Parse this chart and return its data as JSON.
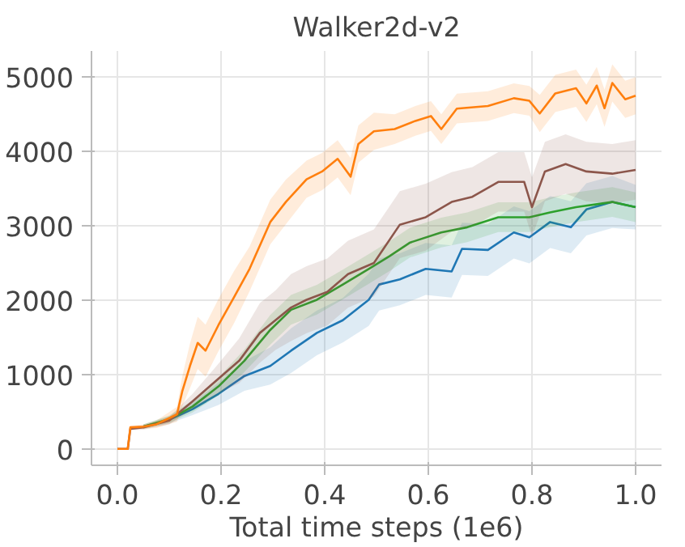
{
  "chart_data": {
    "type": "line",
    "title": "Walker2d-v2",
    "xlabel": "Total time steps (1e6)",
    "xlim": [
      -0.05,
      1.05
    ],
    "ylim": [
      -220,
      5350
    ],
    "xticks": [
      {
        "value": 0,
        "label": "0.0"
      },
      0.2,
      0.4,
      0.6,
      0.8,
      {
        "value": 1,
        "label": "1.0"
      }
    ],
    "yticks": [
      0,
      1000,
      2000,
      3000,
      4000,
      5000
    ],
    "grid": true,
    "marker": "none",
    "line_style": "solid",
    "series": [
      {
        "color": "#1f77b4",
        "x": [
          0.05,
          0.1,
          0.145,
          0.195,
          0.245,
          0.295,
          0.335,
          0.385,
          0.435,
          0.485,
          0.505,
          0.545,
          0.595,
          0.645,
          0.665,
          0.715,
          0.765,
          0.795,
          0.835,
          0.875,
          0.905,
          0.955,
          1.0
        ],
        "values": [
          300,
          390,
          535,
          740,
          980,
          1115,
          1320,
          1560,
          1730,
          2005,
          2210,
          2280,
          2420,
          2385,
          2690,
          2675,
          2910,
          2845,
          3050,
          2980,
          3220,
          3320,
          3250
        ],
        "lower": [
          270,
          340,
          455,
          590,
          780,
          865,
          1020,
          1260,
          1430,
          1655,
          1860,
          1930,
          2070,
          2035,
          2340,
          2325,
          2560,
          2495,
          2700,
          2630,
          2870,
          2970,
          2950
        ],
        "upper": [
          330,
          440,
          615,
          890,
          1180,
          1365,
          1620,
          1860,
          2030,
          2355,
          2560,
          2630,
          2770,
          2735,
          3040,
          3025,
          3260,
          3195,
          3400,
          3330,
          3570,
          3670,
          3550
        ]
      },
      {
        "color": "#2ca02c",
        "x": [
          0.05,
          0.1,
          0.145,
          0.195,
          0.245,
          0.295,
          0.335,
          0.385,
          0.435,
          0.485,
          0.525,
          0.565,
          0.625,
          0.675,
          0.735,
          0.795,
          0.835,
          0.885,
          0.955,
          1.0
        ],
        "values": [
          300,
          400,
          570,
          840,
          1185,
          1600,
          1870,
          2005,
          2210,
          2420,
          2590,
          2775,
          2910,
          2980,
          3115,
          3115,
          3180,
          3250,
          3320,
          3250
        ],
        "lower": [
          270,
          350,
          490,
          720,
          1035,
          1400,
          1670,
          1805,
          2010,
          2220,
          2390,
          2575,
          2710,
          2780,
          2915,
          2915,
          2980,
          3050,
          3120,
          3050
        ],
        "upper": [
          330,
          450,
          650,
          960,
          1335,
          1800,
          2070,
          2205,
          2410,
          2620,
          2790,
          2975,
          3110,
          3180,
          3315,
          3315,
          3380,
          3450,
          3520,
          3450
        ]
      },
      {
        "color": "#8c564b",
        "x": [
          0,
          0.02,
          0.025,
          0.05,
          0.1,
          0.145,
          0.195,
          0.235,
          0.275,
          0.305,
          0.335,
          0.365,
          0.405,
          0.445,
          0.495,
          0.545,
          0.595,
          0.645,
          0.685,
          0.735,
          0.785,
          0.8,
          0.825,
          0.865,
          0.905,
          0.955,
          1.0
        ],
        "values": [
          0,
          0,
          270,
          290,
          380,
          640,
          945,
          1185,
          1560,
          1730,
          1900,
          2005,
          2110,
          2350,
          2500,
          3015,
          3115,
          3320,
          3390,
          3590,
          3590,
          3250,
          3730,
          3830,
          3730,
          3700,
          3750
        ],
        "lower": [
          0,
          0,
          250,
          260,
          330,
          540,
          745,
          885,
          1160,
          1330,
          1450,
          1555,
          1660,
          1900,
          2050,
          2565,
          2665,
          2920,
          2990,
          3190,
          3190,
          2850,
          3330,
          3430,
          3330,
          3300,
          3350
        ],
        "upper": [
          0,
          0,
          290,
          320,
          430,
          740,
          1145,
          1485,
          1960,
          2130,
          2350,
          2455,
          2560,
          2800,
          2950,
          3465,
          3565,
          3720,
          3790,
          3990,
          3990,
          3650,
          4130,
          4230,
          4130,
          4100,
          4150
        ]
      },
      {
        "color": "#ff7f0e",
        "x": [
          0,
          0.02,
          0.025,
          0.05,
          0.075,
          0.115,
          0.125,
          0.14,
          0.155,
          0.17,
          0.195,
          0.225,
          0.255,
          0.295,
          0.325,
          0.365,
          0.395,
          0.425,
          0.45,
          0.465,
          0.495,
          0.535,
          0.575,
          0.605,
          0.625,
          0.655,
          0.715,
          0.765,
          0.795,
          0.815,
          0.845,
          0.885,
          0.905,
          0.925,
          0.94,
          0.955,
          0.98,
          1.0
        ],
        "values": [
          0,
          0,
          290,
          300,
          330,
          465,
          770,
          1115,
          1425,
          1320,
          1665,
          2040,
          2420,
          3050,
          3320,
          3625,
          3730,
          3900,
          3660,
          4100,
          4270,
          4300,
          4410,
          4475,
          4300,
          4575,
          4610,
          4715,
          4680,
          4510,
          4780,
          4850,
          4645,
          4885,
          4580,
          4920,
          4700,
          4750
        ],
        "lower": [
          0,
          0,
          270,
          270,
          280,
          365,
          570,
          815,
          1075,
          970,
          1315,
          1690,
          2120,
          2750,
          3020,
          3375,
          3480,
          3650,
          3410,
          3850,
          4020,
          4100,
          4210,
          4275,
          4100,
          4375,
          4410,
          4515,
          4480,
          4260,
          4530,
          4600,
          4395,
          4635,
          4330,
          4670,
          4450,
          4500
        ],
        "upper": [
          0,
          0,
          310,
          330,
          380,
          565,
          970,
          1415,
          1775,
          1670,
          2015,
          2390,
          2720,
          3350,
          3620,
          3875,
          3980,
          4150,
          3910,
          4350,
          4520,
          4500,
          4610,
          4675,
          4500,
          4775,
          4810,
          4915,
          4880,
          4760,
          5030,
          5100,
          4895,
          5135,
          4830,
          5170,
          4950,
          5000
        ]
      }
    ]
  }
}
